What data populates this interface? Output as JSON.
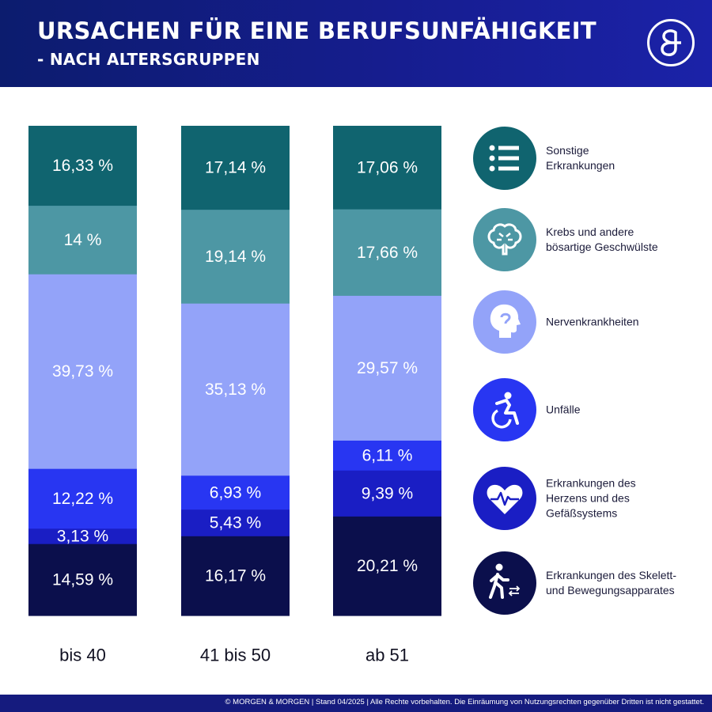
{
  "header": {
    "title_line1": "URSACHEN FÜR EINE BERUFSUNFÄHIGKEIT",
    "title_line2": "- NACH ALTERSGRUPPEN"
  },
  "logo": {
    "icon": "ampersand-logo-icon",
    "color": "#ffffff"
  },
  "chart_data": {
    "type": "bar",
    "stacked": true,
    "percent_stacked": true,
    "categories": [
      "bis 40",
      "41 bis 50",
      "ab 51"
    ],
    "series": [
      {
        "name": "Sonstige Erkrankungen",
        "color": "#10646f",
        "values": [
          16.33,
          17.14,
          17.06
        ],
        "labels": [
          "16,33 %",
          "17,14 %",
          "17,06 %"
        ]
      },
      {
        "name": "Krebs und andere bösartige Geschwülste",
        "color": "#4d97a4",
        "values": [
          14,
          19.14,
          17.66
        ],
        "labels": [
          "14 %",
          "19,14 %",
          "17,66 %"
        ]
      },
      {
        "name": "Nervenkrankheiten",
        "color": "#93a3f9",
        "values": [
          39.73,
          35.13,
          29.57
        ],
        "labels": [
          "39,73 %",
          "35,13 %",
          "29,57 %"
        ]
      },
      {
        "name": "Unfälle",
        "color": "#2836f2",
        "values": [
          12.22,
          6.93,
          6.11
        ],
        "labels": [
          "12,22 %",
          "6,93 %",
          "6,11 %"
        ]
      },
      {
        "name": "Erkrankungen des Herzens und des Gefäßsystems",
        "color": "#1a1ec4",
        "values": [
          3.13,
          5.43,
          9.39
        ],
        "labels": [
          "3,13 %",
          "5,43 %",
          "9,39 %"
        ]
      },
      {
        "name": "Erkrankungen des Skelett- und Bewegungsapparates",
        "color": "#0b0f4c",
        "values": [
          14.59,
          16.17,
          20.21
        ],
        "labels": [
          "14,59 %",
          "16,17 %",
          "20,21 %"
        ]
      }
    ],
    "legend_position": "right"
  },
  "legend": [
    {
      "label": "Sonstige\nErkrankungen",
      "icon": "list-icon",
      "color": "#10646f"
    },
    {
      "label": "Krebs und andere\nbösartige Geschwülste",
      "icon": "brain-icon",
      "color": "#4d97a4"
    },
    {
      "label": "Nervenkrankheiten",
      "icon": "head-icon",
      "color": "#93a3f9"
    },
    {
      "label": "Unfälle",
      "icon": "wheelchair-icon",
      "color": "#2836f2"
    },
    {
      "label": "Erkrankungen des\nHerzens und des\nGefäßsystems",
      "icon": "heart-pulse-icon",
      "color": "#1a1ec4"
    },
    {
      "label": "Erkrankungen des Skelett-\nund Bewegungsapparates",
      "icon": "walking-person-icon",
      "color": "#0b0f4c"
    }
  ],
  "footer": {
    "text": "© MORGEN & MORGEN | Stand 04/2025 | Alle Rechte vorbehalten. Die Einräumung von Nutzungsrechten gegenüber Dritten ist nicht gestattet."
  }
}
